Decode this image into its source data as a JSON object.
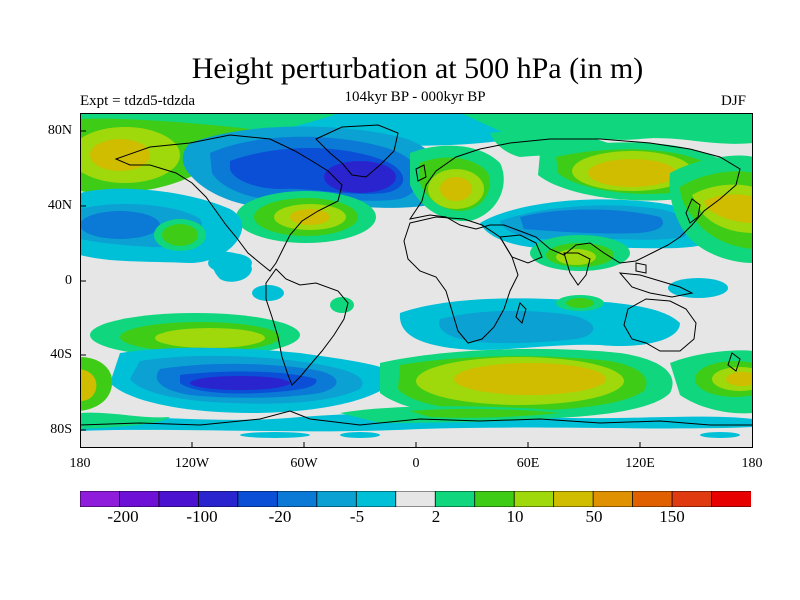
{
  "title": "Height perturbation at 500 hPa (in m)",
  "subtitle": "104kyr BP - 000kyr BP",
  "left_label": "Expt = tdzd5-tdzda",
  "right_label": "DJF",
  "axes": {
    "lat_ticks": [
      "80N",
      "40N",
      "0",
      "40S",
      "80S"
    ],
    "lon_ticks": [
      "180",
      "120W",
      "60W",
      "0",
      "60E",
      "120E",
      "180"
    ]
  },
  "colorbar": {
    "colors": [
      "#8f1bdb",
      "#6e10d6",
      "#4b12cf",
      "#2a24cf",
      "#0a4fd6",
      "#0b7ad6",
      "#0ba1d2",
      "#00c0d8",
      "#e6e6e6",
      "#10d67e",
      "#3fcc17",
      "#9fd80b",
      "#d0bd00",
      "#e09100",
      "#e06000",
      "#e03a10",
      "#e60000"
    ],
    "tick_labels": [
      "-200",
      "-100",
      "-20",
      "-5",
      "2",
      "10",
      "50",
      "150"
    ]
  }
}
